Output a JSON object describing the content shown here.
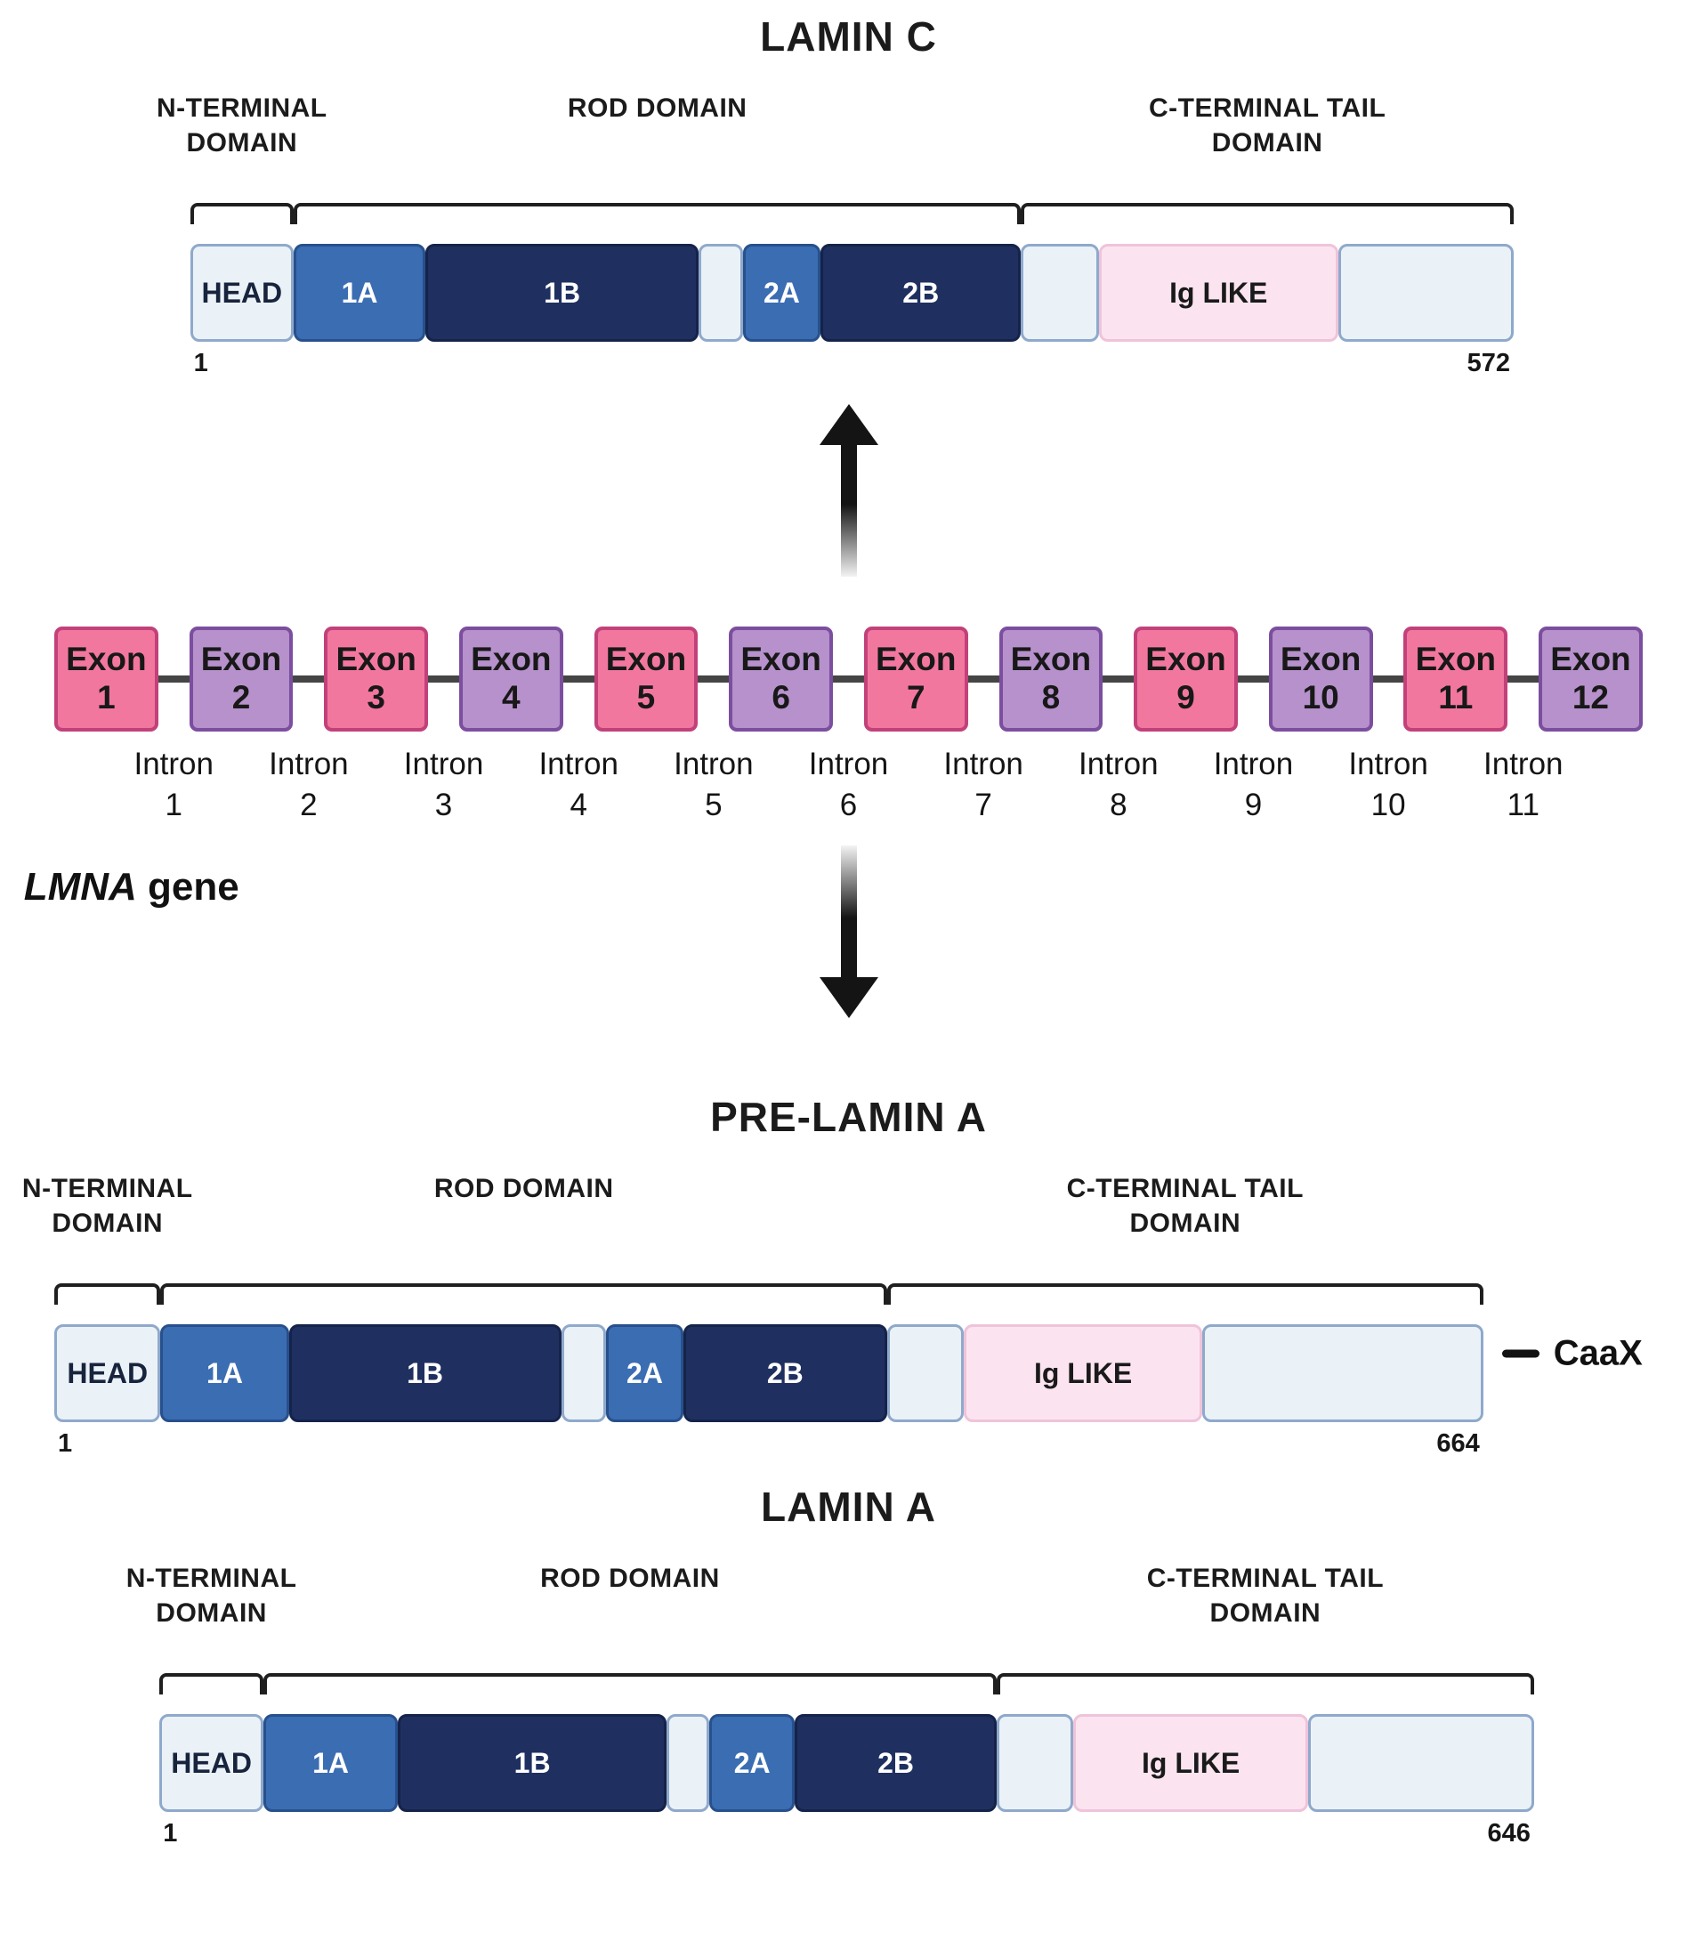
{
  "colors": {
    "text": "#1b1b1b",
    "exon_pink_fill": "#F2779F",
    "exon_pink_border": "#C2417A",
    "exon_purple_fill": "#B691CB",
    "exon_purple_border": "#7C4E9F",
    "seg_light_fill": "#EAF2F8",
    "seg_light_border": "#8FA9CB",
    "seg_blue_fill": "#3B6DB3",
    "seg_blue_border": "#27508C",
    "seg_navy_fill": "#1F3060",
    "seg_navy_border": "#15234A",
    "seg_pink_fill": "#FBE4F0",
    "seg_pink_border": "#EFC3DA",
    "gene_line": "#454545",
    "arrow": "#141414"
  },
  "gene": {
    "label_italic": "LMNA",
    "label_rest": " gene",
    "exon_word": "Exon",
    "intron_word": "Intron",
    "exons": [
      {
        "number": "1",
        "color": "pink"
      },
      {
        "number": "2",
        "color": "purple"
      },
      {
        "number": "3",
        "color": "pink"
      },
      {
        "number": "4",
        "color": "purple"
      },
      {
        "number": "5",
        "color": "pink"
      },
      {
        "number": "6",
        "color": "purple"
      },
      {
        "number": "7",
        "color": "pink"
      },
      {
        "number": "8",
        "color": "purple"
      },
      {
        "number": "9",
        "color": "pink"
      },
      {
        "number": "10",
        "color": "purple"
      },
      {
        "number": "11",
        "color": "pink"
      },
      {
        "number": "12",
        "color": "purple"
      }
    ],
    "introns": [
      "1",
      "2",
      "3",
      "4",
      "5",
      "6",
      "7",
      "8",
      "9",
      "10",
      "11"
    ]
  },
  "proteins": [
    {
      "id": "lamin_c",
      "title": "LAMIN C",
      "start": "1",
      "end": "572",
      "caax": "",
      "left_pct": 11.2,
      "width_pct": 78.0,
      "segments": [
        {
          "label": "HEAD",
          "type": "light",
          "w": 7.83
        },
        {
          "label": "1A",
          "type": "blue",
          "w": 9.95
        },
        {
          "label": "1B",
          "type": "navy",
          "w": 20.65
        },
        {
          "label": "",
          "type": "light",
          "w": 3.32
        },
        {
          "label": "2A",
          "type": "blue",
          "w": 5.9
        },
        {
          "label": "2B",
          "type": "navy",
          "w": 15.12
        },
        {
          "label": "",
          "type": "light",
          "w": 5.9
        },
        {
          "label": "Ig LIKE",
          "type": "pink",
          "w": 18.06
        },
        {
          "label": "",
          "type": "light",
          "w": 13.27
        }
      ],
      "brackets": [
        {
          "label": "N-TERMINAL\nDOMAIN",
          "from": 0,
          "to": 0
        },
        {
          "label": "ROD DOMAIN",
          "from": 1,
          "to": 5
        },
        {
          "label": "C-TERMINAL TAIL\nDOMAIN",
          "from": 6,
          "to": 8
        }
      ]
    },
    {
      "id": "pre_lamin_a",
      "title": "PRE-LAMIN A",
      "start": "1",
      "end": "664",
      "caax": "CaaX",
      "left_pct": 3.2,
      "width_pct": 84.2,
      "segments": [
        {
          "label": "HEAD",
          "type": "light",
          "w": 7.44
        },
        {
          "label": "1A",
          "type": "blue",
          "w": 8.97
        },
        {
          "label": "1B",
          "type": "navy",
          "w": 19.06
        },
        {
          "label": "",
          "type": "light",
          "w": 3.16
        },
        {
          "label": "2A",
          "type": "blue",
          "w": 5.38
        },
        {
          "label": "2B",
          "type": "navy",
          "w": 14.27
        },
        {
          "label": "",
          "type": "light",
          "w": 5.38
        },
        {
          "label": "Ig LIKE",
          "type": "pink",
          "w": 16.67
        },
        {
          "label": "",
          "type": "light",
          "w": 19.66
        }
      ],
      "brackets": [
        {
          "label": "N-TERMINAL\nDOMAIN",
          "from": 0,
          "to": 0
        },
        {
          "label": "ROD DOMAIN",
          "from": 1,
          "to": 5
        },
        {
          "label": "C-TERMINAL TAIL\nDOMAIN",
          "from": 6,
          "to": 8
        }
      ]
    },
    {
      "id": "lamin_a",
      "title": "LAMIN A",
      "start": "1",
      "end": "646",
      "caax": "",
      "left_pct": 9.4,
      "width_pct": 81.0,
      "segments": [
        {
          "label": "HEAD",
          "type": "light",
          "w": 7.56
        },
        {
          "label": "1A",
          "type": "blue",
          "w": 9.78
        },
        {
          "label": "1B",
          "type": "navy",
          "w": 19.56
        },
        {
          "label": "",
          "type": "light",
          "w": 3.11
        },
        {
          "label": "2A",
          "type": "blue",
          "w": 6.22
        },
        {
          "label": "2B",
          "type": "navy",
          "w": 14.67
        },
        {
          "label": "",
          "type": "light",
          "w": 5.6
        },
        {
          "label": "Ig LIKE",
          "type": "pink",
          "w": 17.07
        },
        {
          "label": "",
          "type": "light",
          "w": 16.44
        }
      ],
      "brackets": [
        {
          "label": "N-TERMINAL\nDOMAIN",
          "from": 0,
          "to": 0
        },
        {
          "label": "ROD DOMAIN",
          "from": 1,
          "to": 5
        },
        {
          "label": "C-TERMINAL TAIL\nDOMAIN",
          "from": 6,
          "to": 8
        }
      ]
    }
  ]
}
